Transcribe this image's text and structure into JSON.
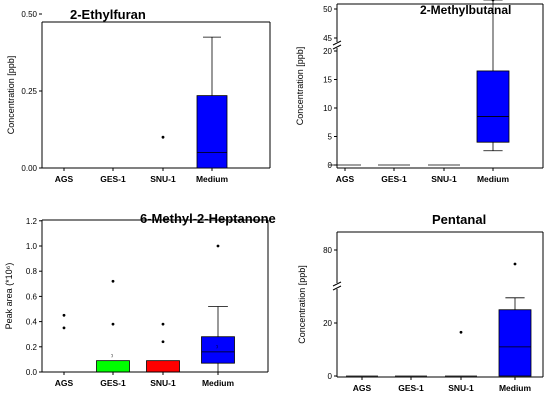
{
  "colors": {
    "box_default": "#0000ff",
    "box_ges1": "#00ff00",
    "box_snu1": "#ff0000",
    "axis": "#000000"
  },
  "chart_data": [
    {
      "type": "box",
      "title": "2-Ethylfuran",
      "ylabel": "Concentration [ppb]",
      "categories": [
        "AGS",
        "GES-1",
        "SNU-1",
        "Medium"
      ],
      "yticks": [
        "0.00",
        "0.25",
        "0.50"
      ],
      "ylim": [
        0,
        0.5
      ],
      "boxes": [
        {
          "category": "AGS",
          "whisker_low": 0,
          "q1": 0,
          "median": 0,
          "q3": 0,
          "whisker_high": 0,
          "mean": 0,
          "outliers": []
        },
        {
          "category": "GES-1",
          "whisker_low": 0,
          "q1": 0,
          "median": 0,
          "q3": 0,
          "whisker_high": 0,
          "mean": 0,
          "outliers": []
        },
        {
          "category": "SNU-1",
          "whisker_low": 0,
          "q1": 0,
          "median": 0,
          "q3": 0,
          "whisker_high": 0,
          "mean": null,
          "outliers": [
            0.1
          ]
        },
        {
          "category": "Medium",
          "whisker_low": 0,
          "q1": 0,
          "median": 0.05,
          "q3": 0.235,
          "whisker_high": 0.425,
          "mean": null,
          "outliers": []
        }
      ]
    },
    {
      "type": "box",
      "title": "2-Methylbutanal",
      "ylabel": "Concentration [ppb]",
      "categories": [
        "AGS",
        "GES-1",
        "SNU-1",
        "Medium"
      ],
      "axis_break": {
        "lower": [
          0,
          20
        ],
        "upper": [
          45,
          50
        ]
      },
      "yticks": [
        "0",
        "5",
        "10",
        "15",
        "20",
        "45",
        "50"
      ],
      "boxes": [
        {
          "category": "AGS",
          "whisker_low": 0,
          "q1": 0,
          "median": 0,
          "q3": 0,
          "whisker_high": 0,
          "mean": null,
          "outliers": []
        },
        {
          "category": "GES-1",
          "whisker_low": 0,
          "q1": 0,
          "median": 0,
          "q3": 0,
          "whisker_high": 0,
          "mean": null,
          "outliers": []
        },
        {
          "category": "SNU-1",
          "whisker_low": 0,
          "q1": 0,
          "median": 0,
          "q3": 0,
          "whisker_high": 0,
          "mean": null,
          "outliers": []
        },
        {
          "category": "Medium",
          "whisker_low": 2.5,
          "q1": 4,
          "median": 8.5,
          "q3": 16.5,
          "whisker_high": 20.5,
          "mean": null,
          "outliers": [
            44.5
          ]
        }
      ]
    },
    {
      "type": "box",
      "title": "6-Methyl-2-Heptanone",
      "ylabel": "Peak area (*10⁶)",
      "categories": [
        "AGS",
        "GES-1",
        "SNU-1",
        "Medium"
      ],
      "yticks": [
        "0.0",
        "0.2",
        "0.4",
        "0.6",
        "0.8",
        "1.0",
        "1.2"
      ],
      "ylim": [
        0,
        1.2
      ],
      "boxes": [
        {
          "category": "AGS",
          "whisker_low": 0,
          "q1": 0,
          "median": 0,
          "q3": 0,
          "whisker_high": 0,
          "mean": null,
          "outliers": [
            0.35,
            0.45
          ]
        },
        {
          "category": "GES-1",
          "whisker_low": 0,
          "q1": 0,
          "median": 0,
          "q3": 0.09,
          "whisker_high": 0.09,
          "mean": 0.12,
          "outliers": [
            0.38,
            0.72
          ]
        },
        {
          "category": "SNU-1",
          "whisker_low": 0,
          "q1": 0,
          "median": 0,
          "q3": 0.09,
          "whisker_high": 0.09,
          "mean": null,
          "outliers": [
            0.24,
            0.38
          ]
        },
        {
          "category": "Medium",
          "whisker_low": 0,
          "q1": 0.07,
          "median": 0.16,
          "q3": 0.28,
          "whisker_high": 0.52,
          "mean": 0.19,
          "outliers": [
            1.0
          ]
        }
      ]
    },
    {
      "type": "box",
      "title": "Pentanal",
      "ylabel": "Concentration [ppb]",
      "categories": [
        "AGS",
        "GES-1",
        "SNU-1",
        "Medium"
      ],
      "axis_break": {
        "lower": [
          0,
          32
        ],
        "upper": [
          67,
          88
        ]
      },
      "yticks": [
        "0",
        "20",
        "80"
      ],
      "boxes": [
        {
          "category": "AGS",
          "whisker_low": 0,
          "q1": 0,
          "median": 0,
          "q3": 0,
          "whisker_high": 0,
          "mean": null,
          "outliers": []
        },
        {
          "category": "GES-1",
          "whisker_low": 0,
          "q1": 0,
          "median": 0,
          "q3": 0,
          "whisker_high": 0,
          "mean": 0,
          "outliers": []
        },
        {
          "category": "SNU-1",
          "whisker_low": 0,
          "q1": 0,
          "median": 0,
          "q3": 0,
          "whisker_high": 0,
          "mean": null,
          "outliers": [
            16.5
          ]
        },
        {
          "category": "Medium",
          "whisker_low": 0,
          "q1": 0,
          "median": 11,
          "q3": 25,
          "whisker_high": 29.5,
          "mean": null,
          "outliers": [
            73
          ]
        }
      ]
    }
  ]
}
